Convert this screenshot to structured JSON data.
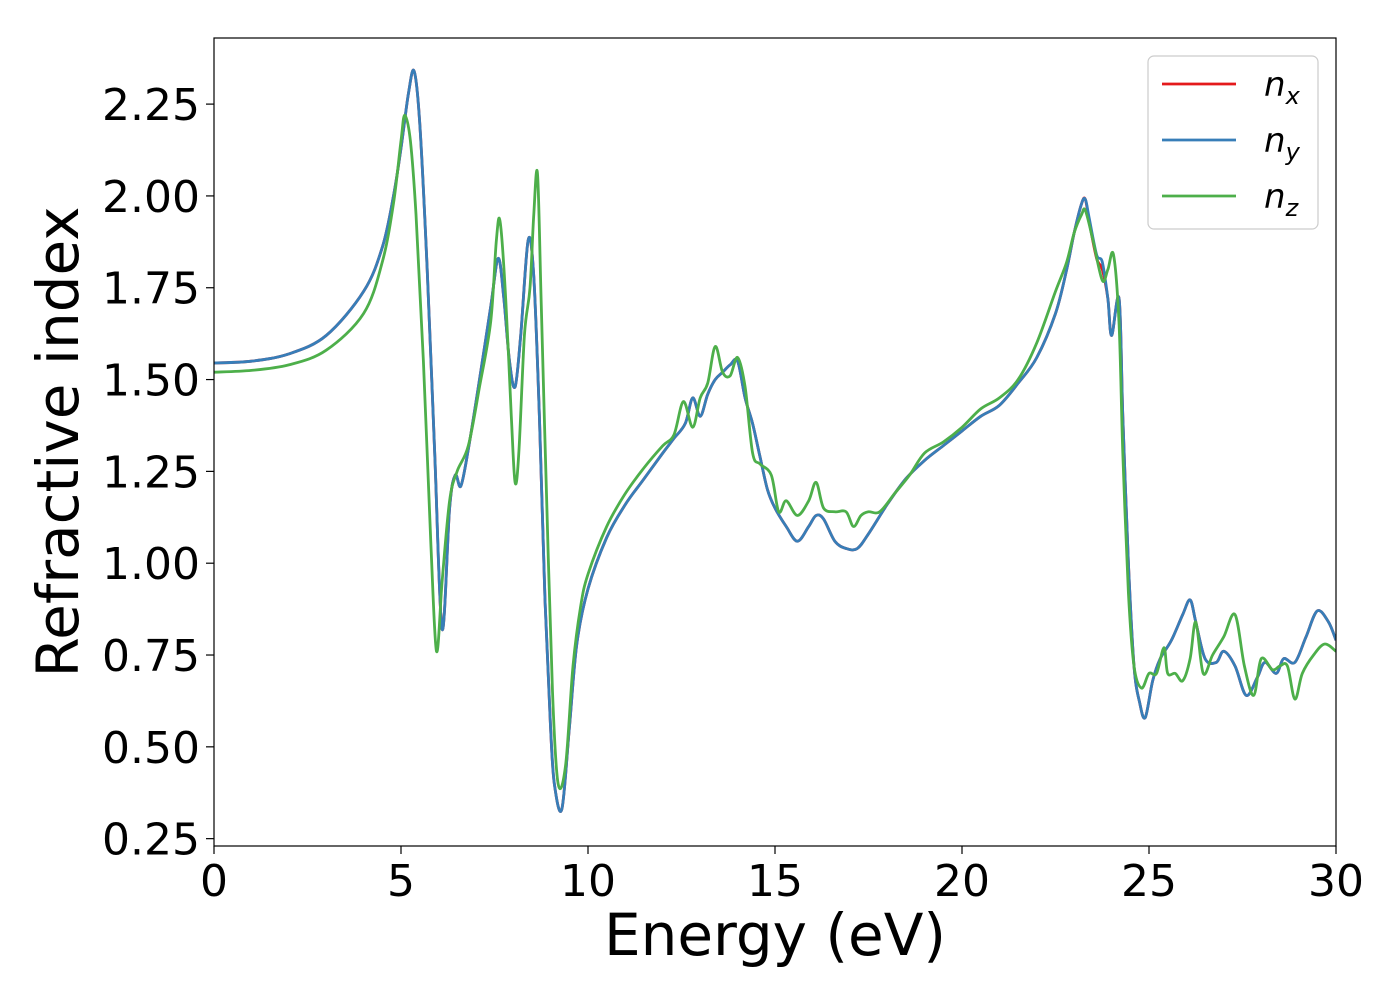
{
  "chart_data": {
    "type": "line",
    "title": "",
    "xlabel": "Energy (eV)",
    "ylabel": "Refractive index",
    "xlim": [
      0,
      30
    ],
    "ylim": [
      0.23,
      2.43
    ],
    "xticks": [
      0,
      5,
      10,
      15,
      20,
      25,
      30
    ],
    "xtick_labels": [
      "0",
      "5",
      "10",
      "15",
      "20",
      "25",
      "30"
    ],
    "yticks": [
      0.25,
      0.5,
      0.75,
      1.0,
      1.25,
      1.5,
      1.75,
      2.0,
      2.25
    ],
    "ytick_labels": [
      "0.25",
      "0.50",
      "0.75",
      "1.00",
      "1.25",
      "1.50",
      "1.75",
      "2.00",
      "2.25"
    ],
    "grid": false,
    "legend_position": "top-right",
    "series": [
      {
        "name": "n_x",
        "legend_main": "n",
        "legend_sub": "x",
        "color": "#e41a1c",
        "x": [
          0,
          1,
          2,
          3,
          4,
          4.5,
          4.8,
          5.0,
          5.2,
          5.35,
          5.5,
          5.7,
          5.9,
          6.1,
          6.3,
          6.45,
          6.6,
          6.8,
          7.1,
          7.4,
          7.6,
          7.75,
          7.9,
          8.05,
          8.2,
          8.4,
          8.55,
          8.7,
          8.85,
          9.0,
          9.1,
          9.3,
          9.5,
          9.7,
          10.0,
          10.5,
          11.0,
          11.5,
          12.0,
          12.3,
          12.6,
          12.8,
          13.0,
          13.2,
          13.4,
          13.6,
          13.8,
          14.0,
          14.2,
          14.4,
          14.6,
          14.8,
          15.0,
          15.3,
          15.6,
          15.9,
          16.1,
          16.3,
          16.6,
          16.9,
          17.2,
          17.5,
          18.0,
          18.5,
          19.0,
          19.5,
          20.0,
          20.5,
          21.0,
          21.5,
          22.0,
          22.5,
          22.8,
          23.0,
          23.2,
          23.3,
          23.4,
          23.6,
          23.75,
          23.9,
          24.0,
          24.2,
          24.3,
          24.45,
          24.6,
          24.75,
          24.9,
          25.1,
          25.3,
          25.6,
          25.9,
          26.1,
          26.25,
          26.5,
          26.8,
          27.0,
          27.3,
          27.6,
          27.9,
          28.1,
          28.4,
          28.6,
          28.9,
          29.2,
          29.5,
          29.8,
          30.0
        ],
        "y": [
          1.545,
          1.55,
          1.57,
          1.62,
          1.74,
          1.86,
          2.0,
          2.13,
          2.28,
          2.34,
          2.2,
          1.8,
          1.3,
          0.82,
          1.15,
          1.24,
          1.21,
          1.31,
          1.5,
          1.7,
          1.83,
          1.72,
          1.55,
          1.48,
          1.62,
          1.88,
          1.78,
          1.4,
          0.9,
          0.55,
          0.4,
          0.33,
          0.55,
          0.78,
          0.93,
          1.07,
          1.16,
          1.23,
          1.3,
          1.34,
          1.38,
          1.45,
          1.4,
          1.46,
          1.5,
          1.52,
          1.54,
          1.55,
          1.45,
          1.38,
          1.29,
          1.2,
          1.15,
          1.1,
          1.06,
          1.1,
          1.13,
          1.12,
          1.06,
          1.04,
          1.04,
          1.08,
          1.16,
          1.23,
          1.28,
          1.32,
          1.36,
          1.4,
          1.43,
          1.49,
          1.56,
          1.68,
          1.8,
          1.9,
          1.98,
          1.99,
          1.93,
          1.83,
          1.8,
          1.72,
          1.62,
          1.72,
          1.4,
          1.0,
          0.72,
          0.62,
          0.58,
          0.68,
          0.74,
          0.79,
          0.86,
          0.9,
          0.84,
          0.74,
          0.73,
          0.76,
          0.72,
          0.64,
          0.69,
          0.73,
          0.7,
          0.74,
          0.73,
          0.8,
          0.87,
          0.84,
          0.79
        ]
      },
      {
        "name": "n_y",
        "legend_main": "n",
        "legend_sub": "y",
        "color": "#377eb8",
        "x": [
          0,
          1,
          2,
          3,
          4,
          4.5,
          4.8,
          5.0,
          5.2,
          5.35,
          5.5,
          5.7,
          5.9,
          6.1,
          6.3,
          6.45,
          6.6,
          6.8,
          7.1,
          7.4,
          7.6,
          7.75,
          7.9,
          8.05,
          8.2,
          8.4,
          8.55,
          8.7,
          8.85,
          9.0,
          9.1,
          9.3,
          9.5,
          9.7,
          10.0,
          10.5,
          11.0,
          11.5,
          12.0,
          12.3,
          12.6,
          12.8,
          13.0,
          13.2,
          13.4,
          13.6,
          13.8,
          14.0,
          14.2,
          14.4,
          14.6,
          14.8,
          15.0,
          15.3,
          15.6,
          15.9,
          16.1,
          16.3,
          16.6,
          16.9,
          17.2,
          17.5,
          18.0,
          18.5,
          19.0,
          19.5,
          20.0,
          20.5,
          21.0,
          21.5,
          22.0,
          22.5,
          22.8,
          23.0,
          23.2,
          23.3,
          23.4,
          23.6,
          23.75,
          23.9,
          24.0,
          24.2,
          24.3,
          24.45,
          24.6,
          24.75,
          24.9,
          25.1,
          25.3,
          25.6,
          25.9,
          26.1,
          26.25,
          26.5,
          26.8,
          27.0,
          27.3,
          27.6,
          27.9,
          28.1,
          28.4,
          28.6,
          28.9,
          29.2,
          29.5,
          29.8,
          30.0
        ],
        "y": [
          1.545,
          1.55,
          1.57,
          1.62,
          1.74,
          1.86,
          2.0,
          2.13,
          2.28,
          2.34,
          2.2,
          1.8,
          1.3,
          0.82,
          1.15,
          1.24,
          1.21,
          1.31,
          1.5,
          1.7,
          1.83,
          1.72,
          1.55,
          1.48,
          1.62,
          1.88,
          1.78,
          1.4,
          0.9,
          0.55,
          0.4,
          0.33,
          0.55,
          0.78,
          0.93,
          1.07,
          1.16,
          1.23,
          1.3,
          1.34,
          1.38,
          1.45,
          1.4,
          1.46,
          1.5,
          1.52,
          1.54,
          1.55,
          1.45,
          1.38,
          1.29,
          1.2,
          1.15,
          1.1,
          1.06,
          1.1,
          1.13,
          1.12,
          1.06,
          1.04,
          1.04,
          1.08,
          1.16,
          1.23,
          1.28,
          1.32,
          1.36,
          1.4,
          1.43,
          1.49,
          1.56,
          1.68,
          1.8,
          1.9,
          1.98,
          1.99,
          1.94,
          1.84,
          1.82,
          1.72,
          1.62,
          1.72,
          1.4,
          1.0,
          0.72,
          0.62,
          0.58,
          0.68,
          0.74,
          0.79,
          0.86,
          0.9,
          0.84,
          0.74,
          0.73,
          0.76,
          0.72,
          0.64,
          0.69,
          0.73,
          0.7,
          0.74,
          0.73,
          0.8,
          0.87,
          0.84,
          0.79
        ]
      },
      {
        "name": "n_z",
        "legend_main": "n",
        "legend_sub": "z",
        "color": "#4daf4a",
        "x": [
          0,
          1,
          2,
          3,
          4,
          4.5,
          4.8,
          5.0,
          5.1,
          5.25,
          5.4,
          5.6,
          5.8,
          5.95,
          6.1,
          6.3,
          6.5,
          6.8,
          7.1,
          7.4,
          7.55,
          7.65,
          7.8,
          7.95,
          8.05,
          8.15,
          8.3,
          8.45,
          8.55,
          8.65,
          8.75,
          8.9,
          9.05,
          9.2,
          9.4,
          9.6,
          9.8,
          10.0,
          10.5,
          11.0,
          11.5,
          12.0,
          12.3,
          12.55,
          12.8,
          13.0,
          13.2,
          13.4,
          13.6,
          13.8,
          14.0,
          14.2,
          14.4,
          14.6,
          14.9,
          15.1,
          15.3,
          15.6,
          15.9,
          16.1,
          16.3,
          16.6,
          16.9,
          17.1,
          17.3,
          17.5,
          17.8,
          18.2,
          18.6,
          19.0,
          19.5,
          20.0,
          20.5,
          21.0,
          21.5,
          22.0,
          22.5,
          22.8,
          23.0,
          23.2,
          23.3,
          23.5,
          23.75,
          23.9,
          24.05,
          24.2,
          24.3,
          24.45,
          24.6,
          24.8,
          25.0,
          25.2,
          25.4,
          25.5,
          25.7,
          25.9,
          26.1,
          26.25,
          26.45,
          26.7,
          27.0,
          27.3,
          27.55,
          27.8,
          28.0,
          28.3,
          28.5,
          28.7,
          28.9,
          29.1,
          29.4,
          29.7,
          30.0
        ],
        "y": [
          1.52,
          1.525,
          1.54,
          1.58,
          1.68,
          1.82,
          1.98,
          2.15,
          2.22,
          2.15,
          1.95,
          1.55,
          1.05,
          0.76,
          0.95,
          1.17,
          1.25,
          1.32,
          1.48,
          1.66,
          1.88,
          1.93,
          1.72,
          1.4,
          1.22,
          1.3,
          1.62,
          1.75,
          1.95,
          2.06,
          1.7,
          1.15,
          0.65,
          0.4,
          0.45,
          0.72,
          0.88,
          0.97,
          1.1,
          1.19,
          1.26,
          1.32,
          1.35,
          1.44,
          1.37,
          1.45,
          1.49,
          1.59,
          1.52,
          1.51,
          1.56,
          1.48,
          1.3,
          1.27,
          1.24,
          1.14,
          1.17,
          1.13,
          1.17,
          1.22,
          1.15,
          1.14,
          1.14,
          1.1,
          1.13,
          1.14,
          1.14,
          1.19,
          1.24,
          1.3,
          1.33,
          1.37,
          1.42,
          1.45,
          1.5,
          1.6,
          1.74,
          1.82,
          1.9,
          1.95,
          1.96,
          1.88,
          1.77,
          1.8,
          1.84,
          1.65,
          1.3,
          0.92,
          0.72,
          0.66,
          0.7,
          0.7,
          0.77,
          0.7,
          0.7,
          0.68,
          0.74,
          0.84,
          0.7,
          0.75,
          0.8,
          0.86,
          0.72,
          0.64,
          0.74,
          0.71,
          0.72,
          0.72,
          0.63,
          0.7,
          0.75,
          0.78,
          0.76
        ]
      }
    ]
  }
}
